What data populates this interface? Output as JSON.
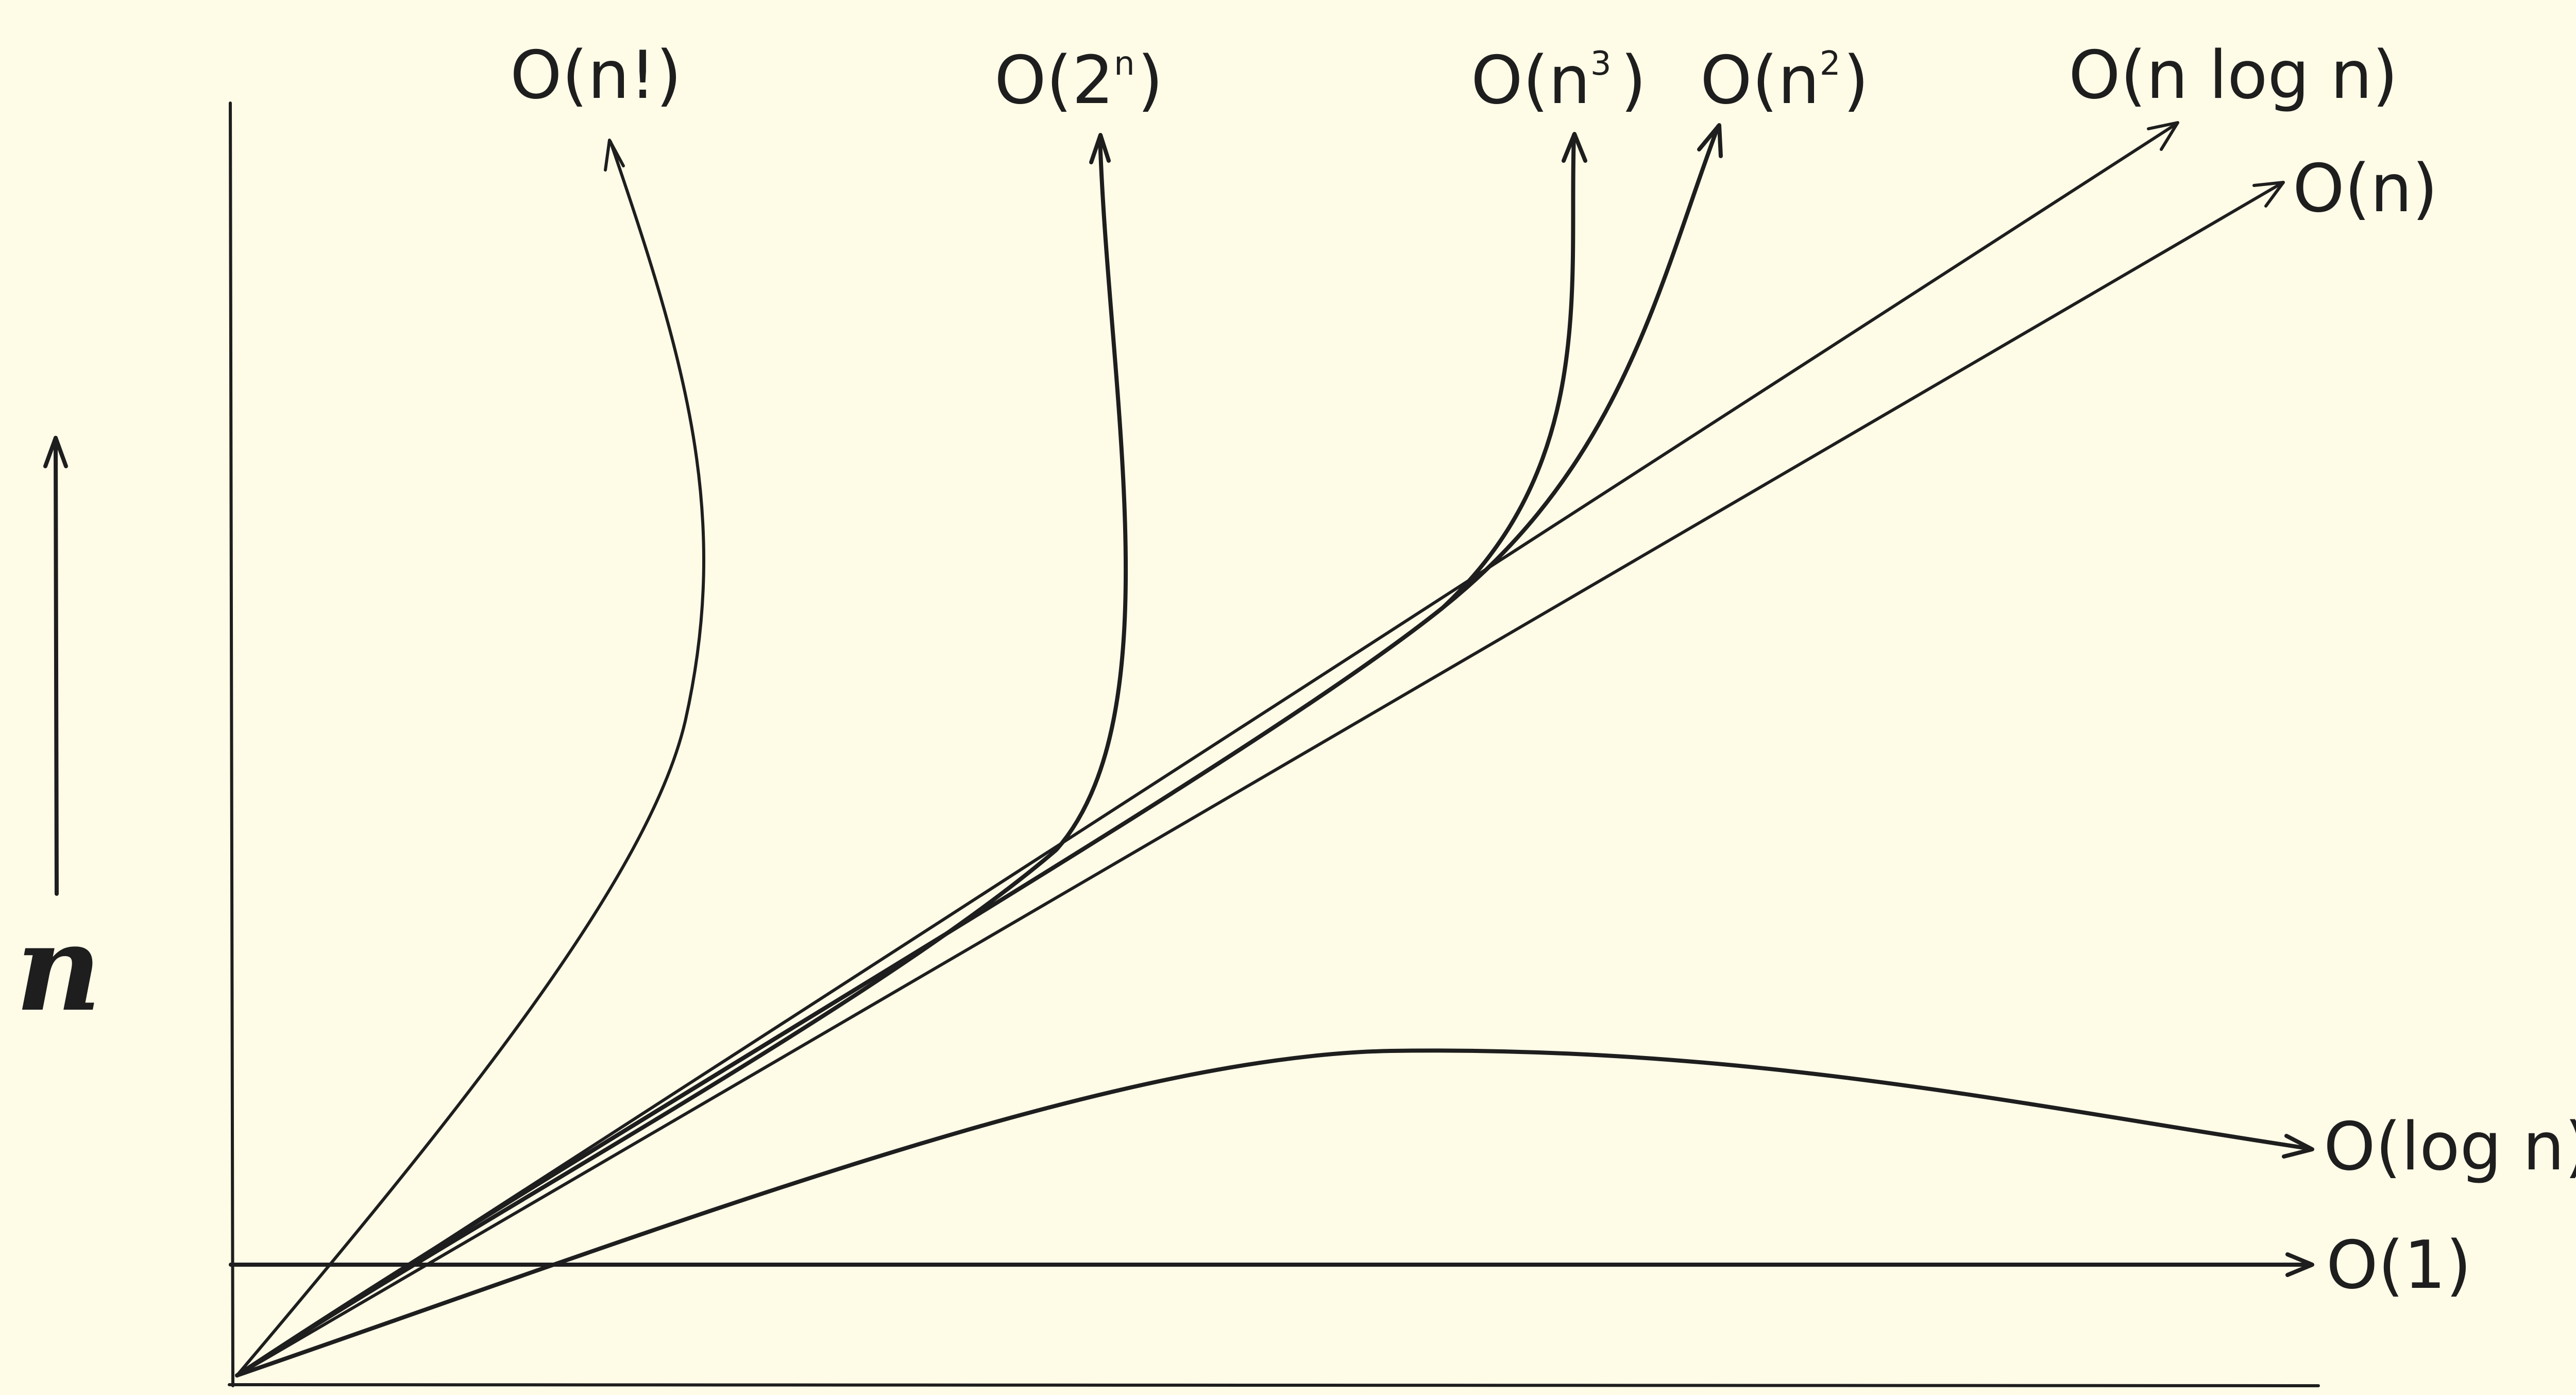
{
  "colors": {
    "background": "#fefbe7",
    "ink": "#1e1e1e"
  },
  "axis": {
    "y_label": "n"
  },
  "curves": [
    {
      "id": "factorial",
      "label_main": "O(n!)",
      "label_sup": ""
    },
    {
      "id": "exponential",
      "label_main": "O(2",
      "label_sup": "n",
      "label_close": ")"
    },
    {
      "id": "cubic",
      "label_main": "O(n",
      "label_sup": "3",
      "label_close": ")"
    },
    {
      "id": "quadratic",
      "label_main": "O(n",
      "label_sup": "2",
      "label_close": ")"
    },
    {
      "id": "nlogn",
      "label_main": "O(n log n)",
      "label_sup": ""
    },
    {
      "id": "linear",
      "label_main": "O(n)",
      "label_sup": ""
    },
    {
      "id": "logarithmic",
      "label_main": "O(log n)",
      "label_sup": ""
    },
    {
      "id": "constant",
      "label_main": "O(1)",
      "label_sup": ""
    }
  ]
}
